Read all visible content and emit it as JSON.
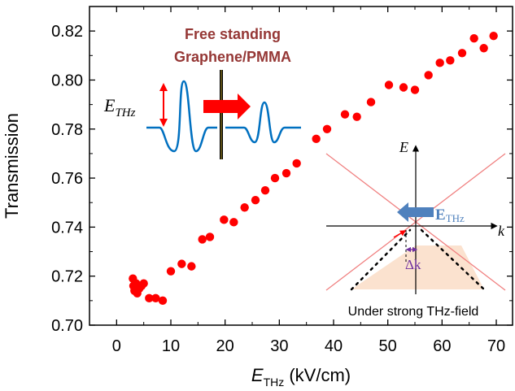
{
  "chart_data": {
    "type": "scatter",
    "xlabel": {
      "symbol": "E",
      "subscript": "THz",
      "unit": " (kV/cm)"
    },
    "ylabel": "Transmission",
    "xlim": [
      -5,
      73
    ],
    "ylim": [
      0.7,
      0.83
    ],
    "x_ticks": [
      0,
      10,
      20,
      30,
      40,
      50,
      60,
      70
    ],
    "y_ticks": [
      0.7,
      0.72,
      0.74,
      0.76,
      0.78,
      0.8,
      0.82
    ],
    "x_tick_labels": [
      "0",
      "10",
      "20",
      "30",
      "40",
      "50",
      "60",
      "70"
    ],
    "y_tick_labels": [
      "0.70",
      "0.72",
      "0.74",
      "0.76",
      "0.78",
      "0.80",
      "0.82"
    ],
    "grid": false,
    "marker_color": "#ff0000",
    "points": [
      [
        3.0,
        0.719
      ],
      [
        3.1,
        0.716
      ],
      [
        3.3,
        0.714
      ],
      [
        3.6,
        0.717
      ],
      [
        3.8,
        0.713
      ],
      [
        4.2,
        0.715
      ],
      [
        4.6,
        0.716
      ],
      [
        5.0,
        0.717
      ],
      [
        6.0,
        0.711
      ],
      [
        7.2,
        0.711
      ],
      [
        8.5,
        0.71
      ],
      [
        10.0,
        0.722
      ],
      [
        12.0,
        0.725
      ],
      [
        13.8,
        0.724
      ],
      [
        15.8,
        0.735
      ],
      [
        17.2,
        0.736
      ],
      [
        19.8,
        0.743
      ],
      [
        21.6,
        0.742
      ],
      [
        23.6,
        0.748
      ],
      [
        25.6,
        0.751
      ],
      [
        27.4,
        0.755
      ],
      [
        29.2,
        0.76
      ],
      [
        31.3,
        0.762
      ],
      [
        33.2,
        0.766
      ],
      [
        36.8,
        0.776
      ],
      [
        38.8,
        0.78
      ],
      [
        42.1,
        0.786
      ],
      [
        44.3,
        0.785
      ],
      [
        46.9,
        0.791
      ],
      [
        50.2,
        0.798
      ],
      [
        52.9,
        0.797
      ],
      [
        55.0,
        0.796
      ],
      [
        57.5,
        0.802
      ],
      [
        59.6,
        0.807
      ],
      [
        61.5,
        0.808
      ],
      [
        63.7,
        0.811
      ],
      [
        65.9,
        0.817
      ],
      [
        67.7,
        0.813
      ],
      [
        69.5,
        0.818
      ]
    ]
  },
  "annotations": {
    "sample_label_line1": "Free standing",
    "sample_label_line2": "Graphene/PMMA",
    "sample_label_color": "#953735",
    "field_symbol": "E",
    "field_subscript": "THz",
    "wave_color": "#0070c0",
    "arrow_color": "#ff0000"
  },
  "inset": {
    "energy_axis_label": "E",
    "momentum_axis_label": "k",
    "field_label": "E",
    "field_label_subscript": "THz",
    "delta_k_label": "Δk",
    "caption": "Under strong THz-field",
    "cone_color": "#f08080",
    "fill_color": "#fbe2cf",
    "field_arrow_color": "#4f81bd",
    "delta_k_color": "#7030a0"
  }
}
